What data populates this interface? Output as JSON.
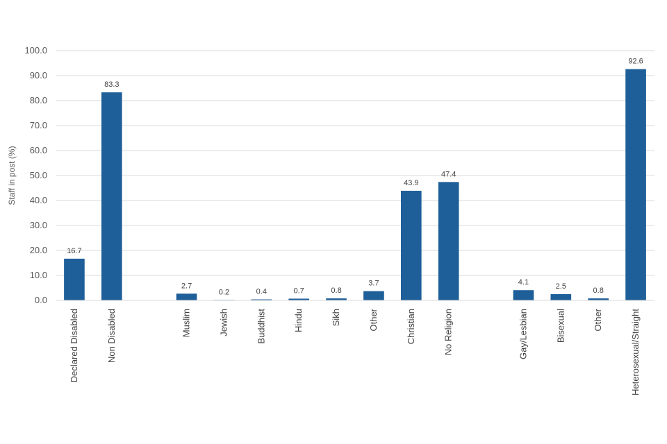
{
  "chart_data": {
    "type": "bar",
    "ylabel": "Staff in post (%)",
    "ylim": [
      0,
      100
    ],
    "ytick_step": 10,
    "ytick_labels": [
      "0.0",
      "10.0",
      "20.0",
      "30.0",
      "40.0",
      "50.0",
      "60.0",
      "70.0",
      "80.0",
      "90.0",
      "100.0"
    ],
    "grid": true,
    "bar_color": "#1F5F99",
    "gridline_color": "#D9D9D9",
    "categories": [
      "Declared Disabled",
      "Non Disabled",
      "Muslim",
      "Jewish",
      "Buddhist",
      "Hindu",
      "Sikh",
      "Other",
      "Christian",
      "No Religion",
      "Gay/Lesbian",
      "Bisexual",
      "Other",
      "Heterosexual/Straight"
    ],
    "values": [
      16.7,
      83.3,
      2.7,
      0.2,
      0.4,
      0.7,
      0.8,
      3.7,
      43.9,
      47.4,
      4.1,
      2.5,
      0.8,
      92.6
    ],
    "value_labels": [
      "16.7",
      "83.3",
      "2.7",
      "0.2",
      "0.4",
      "0.7",
      "0.8",
      "3.7",
      "43.9",
      "47.4",
      "4.1",
      "2.5",
      "0.8",
      "92.6"
    ],
    "groups": [
      2,
      8,
      4
    ]
  }
}
